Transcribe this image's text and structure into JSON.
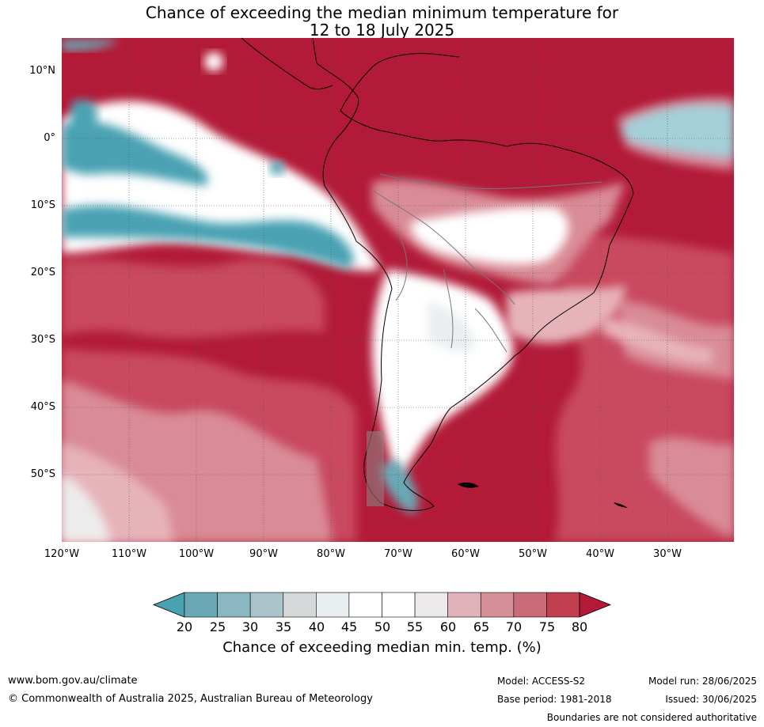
{
  "title": {
    "line1": "Chance of exceeding the median minimum temperature for",
    "line2": "12 to 18 July 2025"
  },
  "map": {
    "lat_labels": [
      "10°N",
      "0°",
      "10°S",
      "20°S",
      "30°S",
      "40°S",
      "50°S"
    ],
    "lon_labels": [
      "120°W",
      "110°W",
      "100°W",
      "90°W",
      "80°W",
      "70°W",
      "60°W",
      "50°W",
      "40°W",
      "30°W"
    ],
    "colors": {
      "high": "#b21a38",
      "warm": "#c9495e",
      "mid": "#d98b96",
      "light": "#e7b3ba",
      "neutral": "#ffffff",
      "cool": "#4aa1b2"
    }
  },
  "colorbar": {
    "ticks": [
      "20",
      "25",
      "30",
      "35",
      "40",
      "45",
      "50",
      "55",
      "60",
      "65",
      "70",
      "75",
      "80"
    ],
    "colors": [
      "#4aa1b2",
      "#6aa8b5",
      "#8bb7c3",
      "#a9c4ca",
      "#d4d8d9",
      "#e9eef0",
      "#ffffff",
      "#ffffff",
      "#ebe9ea",
      "#e0b2b9",
      "#d48e96",
      "#c96b78",
      "#c1404f",
      "#b21a38"
    ],
    "label": "Chance of exceeding median min. temp. (%)"
  },
  "footer": {
    "url": "www.bom.gov.au/climate",
    "copyright": "© Commonwealth of Australia 2025, Australian Bureau of Meteorology",
    "model": "Model: ACCESS-S2",
    "base_period": "Base period: 1981-2018",
    "model_run": "Model run: 28/06/2025",
    "issued": "Issued: 30/06/2025",
    "disclaimer": "Boundaries are not considered authoritative"
  }
}
